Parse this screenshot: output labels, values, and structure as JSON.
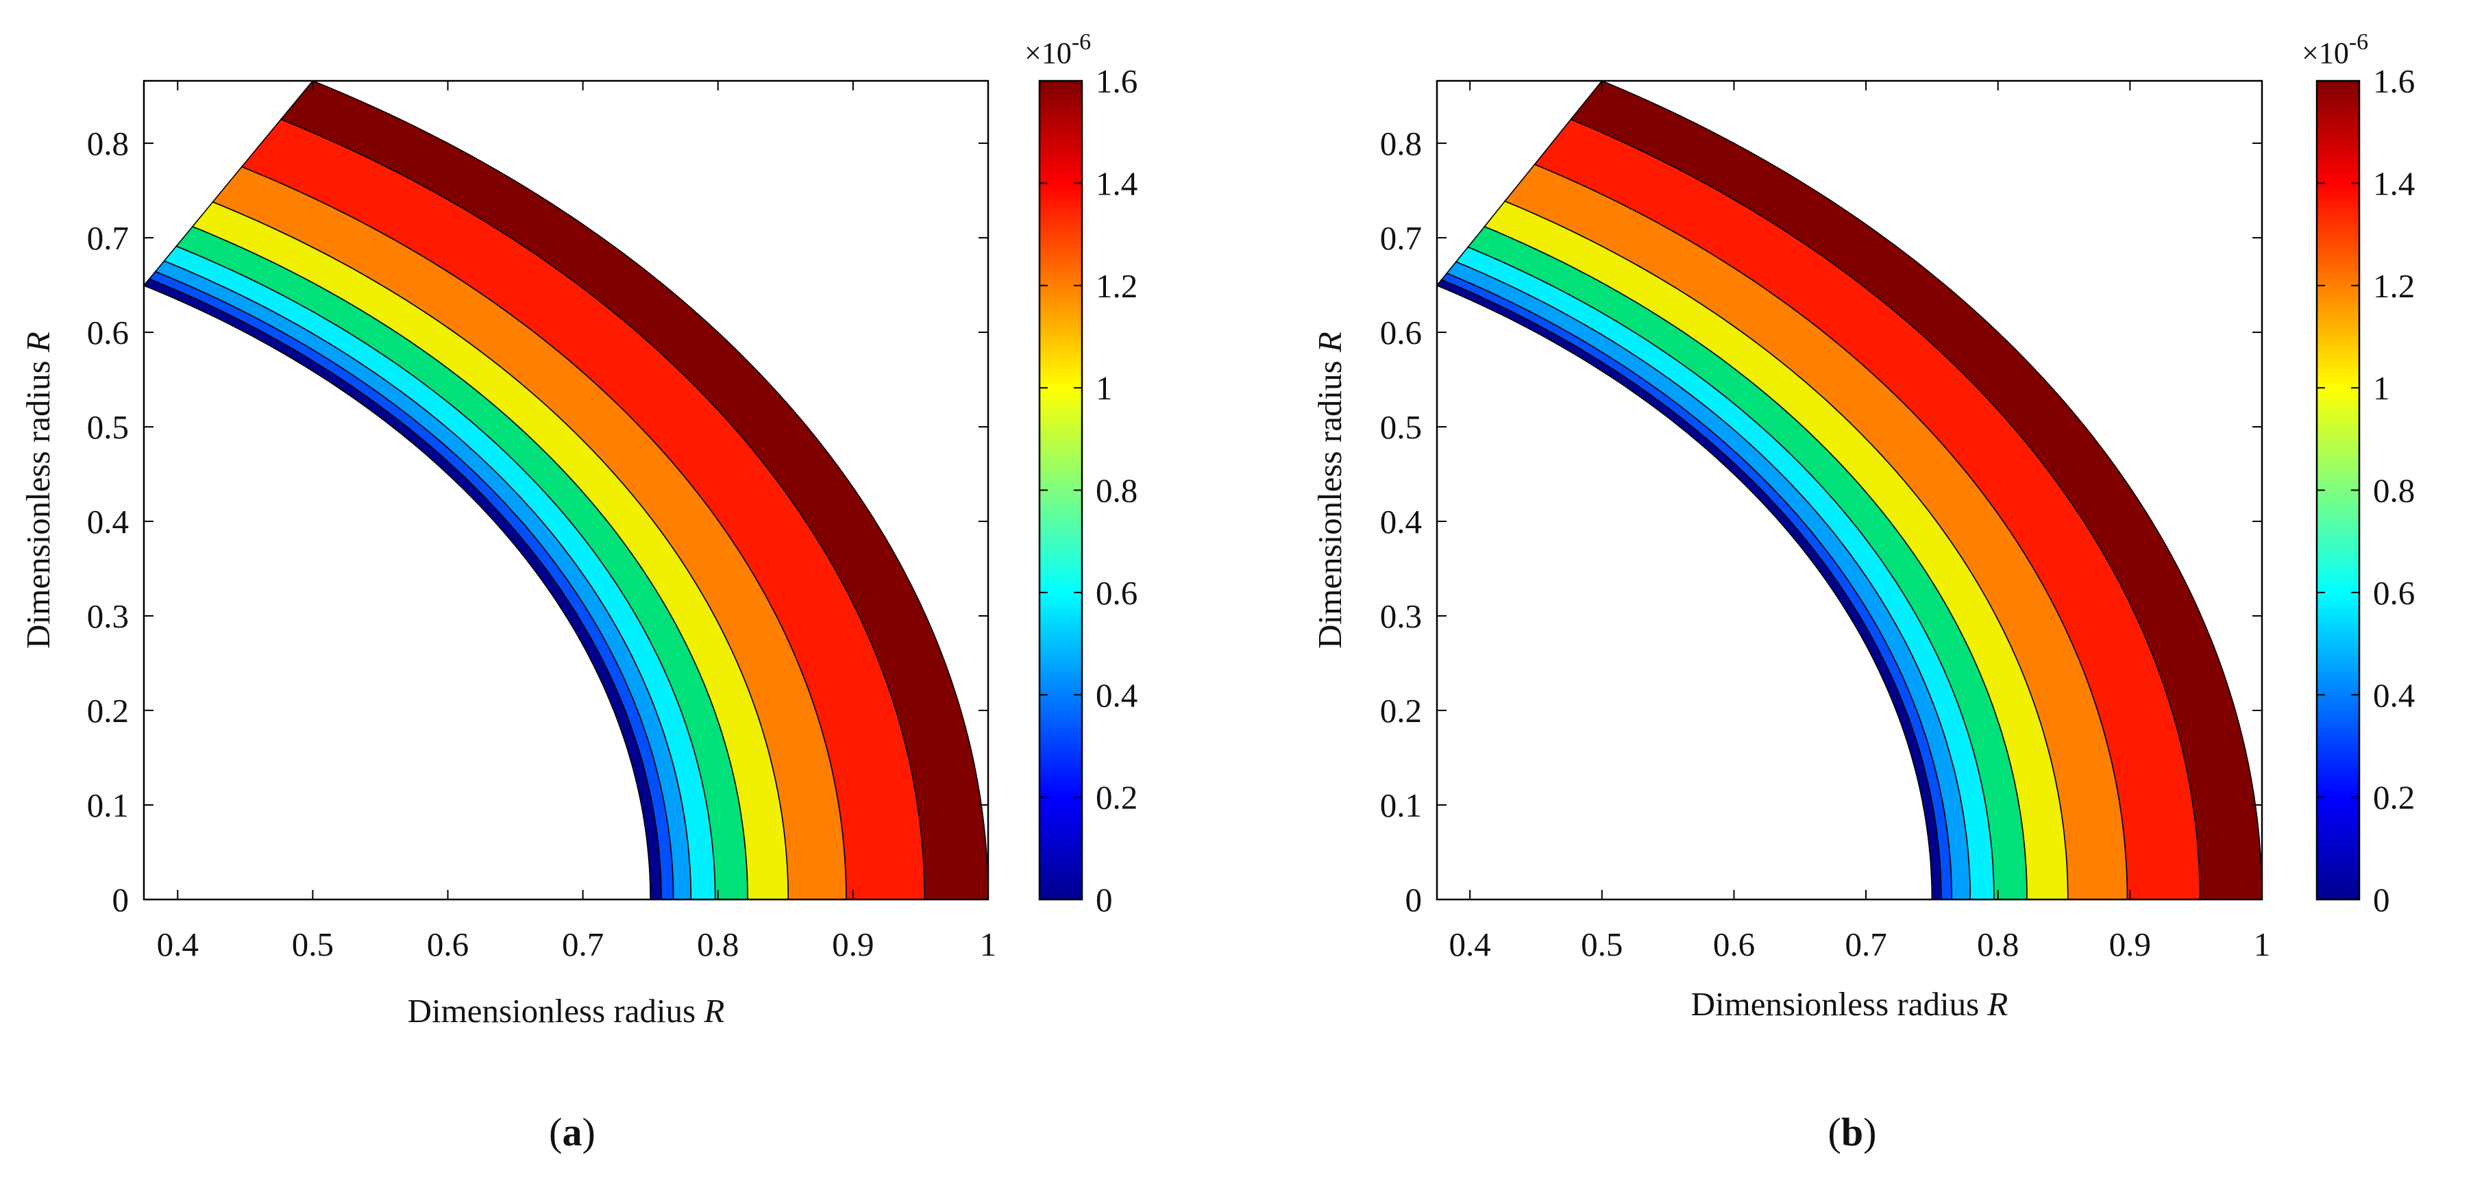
{
  "figure": {
    "panels": [
      {
        "caption": "a"
      },
      {
        "caption": "b"
      }
    ]
  },
  "colors": {
    "levels": [
      "#00008F",
      "#0000FF",
      "#0050FF",
      "#00A0FF",
      "#00F0FF",
      "#00E17A",
      "#F0F000",
      "#FF8000",
      "#FF1A00",
      "#800000"
    ],
    "axis": "#000000",
    "background": "#ffffff"
  },
  "chart_data": [
    {
      "type": "contourf",
      "panel": "a",
      "title": "",
      "xlabel": "Dimensionless radius",
      "xlabel_symbol": "R",
      "ylabel": "Dimensionless radius",
      "ylabel_symbol": "R",
      "xlim": [
        0.375,
        1.0
      ],
      "ylim": [
        0,
        0.866
      ],
      "xticks": [
        0.4,
        0.5,
        0.6,
        0.7,
        0.8,
        0.9,
        1.0
      ],
      "xtick_labels": [
        "0.4",
        "0.5",
        "0.6",
        "0.7",
        "0.8",
        "0.9",
        "1"
      ],
      "yticks": [
        0,
        0.1,
        0.2,
        0.3,
        0.4,
        0.5,
        0.6,
        0.7,
        0.8
      ],
      "ytick_labels": [
        "0",
        "0.1",
        "0.2",
        "0.3",
        "0.4",
        "0.5",
        "0.6",
        "0.7",
        "0.8"
      ],
      "domain": {
        "inner_radius": 0.75,
        "outer_radius": 1.0,
        "theta_start_deg": 0,
        "theta_end_deg": 60
      },
      "contour_radii": [
        0.75,
        0.758,
        0.767,
        0.78,
        0.798,
        0.822,
        0.852,
        0.895,
        0.953,
        1.0
      ],
      "colorbar": {
        "range": [
          0,
          1.6
        ],
        "ticks": [
          0,
          0.2,
          0.4,
          0.6,
          0.8,
          1.0,
          1.2,
          1.4,
          1.6
        ],
        "tick_labels": [
          "0",
          "0.2",
          "0.4",
          "0.6",
          "0.8",
          "1",
          "1.2",
          "1.4",
          "1.6"
        ],
        "multiplier_base": "×10",
        "multiplier_exp": "-6"
      }
    },
    {
      "type": "contourf",
      "panel": "b",
      "title": "",
      "xlabel": "Dimensionless radius",
      "xlabel_symbol": "R",
      "ylabel": "Dimensionless radius",
      "ylabel_symbol": "R",
      "xlim": [
        0.375,
        1.0
      ],
      "ylim": [
        0,
        0.866
      ],
      "xticks": [
        0.4,
        0.5,
        0.6,
        0.7,
        0.8,
        0.9,
        1.0
      ],
      "xtick_labels": [
        "0.4",
        "0.5",
        "0.6",
        "0.7",
        "0.8",
        "0.9",
        "1"
      ],
      "yticks": [
        0,
        0.1,
        0.2,
        0.3,
        0.4,
        0.5,
        0.6,
        0.7,
        0.8
      ],
      "ytick_labels": [
        "0",
        "0.1",
        "0.2",
        "0.3",
        "0.4",
        "0.5",
        "0.6",
        "0.7",
        "0.8"
      ],
      "domain": {
        "inner_radius": 0.75,
        "outer_radius": 1.0,
        "theta_start_deg": 0,
        "theta_end_deg": 60
      },
      "contour_radii": [
        0.75,
        0.757,
        0.765,
        0.779,
        0.797,
        0.822,
        0.853,
        0.898,
        0.953,
        1.0
      ],
      "colorbar": {
        "range": [
          0,
          1.6
        ],
        "ticks": [
          0,
          0.2,
          0.4,
          0.6,
          0.8,
          1.0,
          1.2,
          1.4,
          1.6
        ],
        "tick_labels": [
          "0",
          "0.2",
          "0.4",
          "0.6",
          "0.8",
          "1",
          "1.2",
          "1.4",
          "1.6"
        ],
        "multiplier_base": "×10",
        "multiplier_exp": "-6"
      }
    }
  ]
}
